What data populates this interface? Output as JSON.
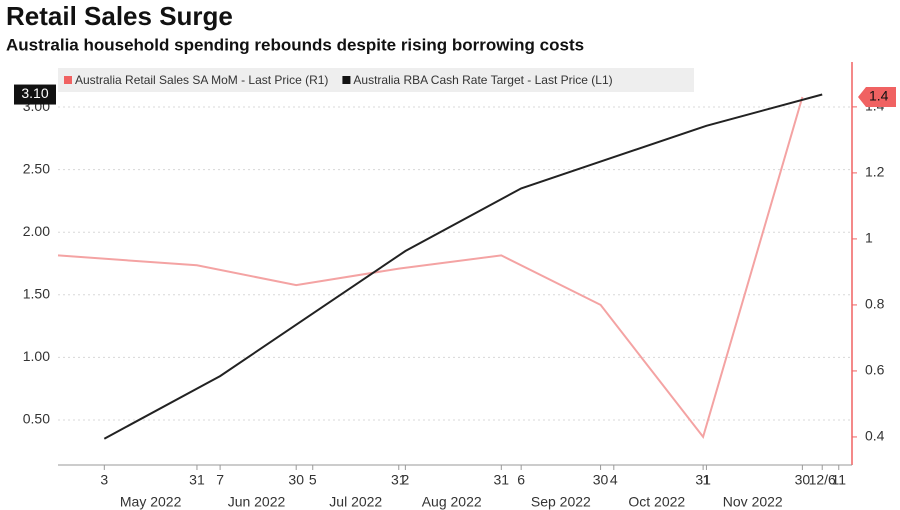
{
  "chart_data": {
    "type": "line",
    "title": "Retail Sales Surge",
    "subtitle": "Australia household spending rebounds despite rising borrowing costs",
    "grid": true,
    "xlim": [
      "2022-04-19",
      "2022-12-15"
    ],
    "xticks": [
      {
        "value": "2022-05-03",
        "label": "3"
      },
      {
        "value": "2022-05-31",
        "label": "31"
      },
      {
        "value": "2022-06-07",
        "label": "7"
      },
      {
        "value": "2022-06-30",
        "label": "30"
      },
      {
        "value": "2022-07-05",
        "label": "5"
      },
      {
        "value": "2022-07-31",
        "label": "31"
      },
      {
        "value": "2022-08-02",
        "label": "2"
      },
      {
        "value": "2022-08-31",
        "label": "31"
      },
      {
        "value": "2022-09-06",
        "label": "6"
      },
      {
        "value": "2022-09-30",
        "label": "30"
      },
      {
        "value": "2022-10-04",
        "label": "4"
      },
      {
        "value": "2022-10-31",
        "label": "31"
      },
      {
        "value": "2022-11-01",
        "label": "1"
      },
      {
        "value": "2022-11-30",
        "label": "30"
      },
      {
        "value": "2022-12-06",
        "label": "12/6"
      },
      {
        "value": "2022-12-11",
        "label": "11"
      }
    ],
    "month_labels": [
      {
        "value": "2022-05-17",
        "label": "May 2022"
      },
      {
        "value": "2022-06-18",
        "label": "Jun 2022"
      },
      {
        "value": "2022-07-18",
        "label": "Jul 2022"
      },
      {
        "value": "2022-08-16",
        "label": "Aug 2022"
      },
      {
        "value": "2022-09-18",
        "label": "Sep 2022"
      },
      {
        "value": "2022-10-17",
        "label": "Oct 2022"
      },
      {
        "value": "2022-11-15",
        "label": "Nov 2022"
      }
    ],
    "ylim": [
      0.14,
      3.36
    ],
    "yticks": [
      {
        "value": 0.5,
        "label": "0.50"
      },
      {
        "value": 1,
        "label": "1.00"
      },
      {
        "value": 1.5,
        "label": "1.50"
      },
      {
        "value": 2,
        "label": "2.00"
      },
      {
        "value": 2.5,
        "label": "2.50"
      },
      {
        "value": 3,
        "label": "3.00"
      }
    ],
    "y2lim": [
      0.315,
      1.536
    ],
    "y2ticks": [
      0.4,
      0.6,
      0.8,
      1.0,
      1.2,
      1.4
    ],
    "series": [
      {
        "name": "Australia Retail Sales SA MoM - Last Price (R1)",
        "color": "#f4a3a3",
        "tag_color": "#f06262",
        "axis": "y2",
        "x": [
          "2022-04-19",
          "2022-05-31",
          "2022-06-30",
          "2022-07-31",
          "2022-08-31",
          "2022-09-30",
          "2022-10-31",
          "2022-11-30"
        ],
        "values": [
          0.95,
          0.92,
          0.86,
          0.91,
          0.95,
          0.8,
          0.4,
          1.43
        ],
        "value_labels": [
          null,
          null,
          null,
          null,
          null,
          null,
          null,
          "1.4"
        ]
      },
      {
        "name": "Australia RBA Cash Rate Target - Last Price (L1)",
        "color": "#222222",
        "tag_color": "#111111",
        "x": [
          "2022-05-03",
          "2022-06-07",
          "2022-07-05",
          "2022-08-02",
          "2022-09-06",
          "2022-10-04",
          "2022-11-01",
          "2022-12-06"
        ],
        "values": [
          0.35,
          0.85,
          1.35,
          1.85,
          2.35,
          2.6,
          2.85,
          3.1
        ],
        "value_labels": [
          null,
          null,
          null,
          null,
          null,
          null,
          null,
          "3.10"
        ]
      }
    ]
  }
}
